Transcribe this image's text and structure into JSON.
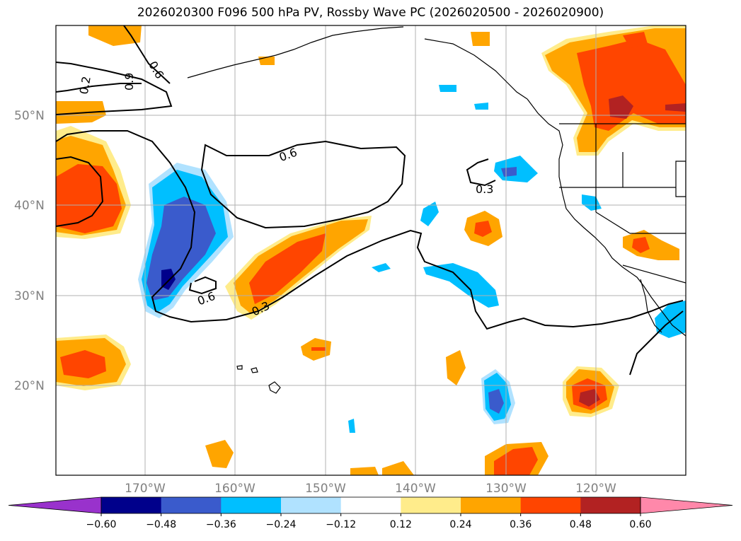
{
  "title": "2026020300 F096 500 hPa PV, Rossby Wave PC (2026020500 - 2026020900)",
  "lat_labels": [
    "50°N",
    "40°N",
    "30°N",
    "20°N"
  ],
  "lon_labels": [
    "170°W",
    "160°W",
    "150°W",
    "140°W",
    "130°W",
    "120°W"
  ],
  "contour_labels": [
    "0.6",
    "0.6",
    "0.3",
    "0.6",
    "0.3",
    "0.2",
    "0.9"
  ],
  "colorbar": {
    "ticks": [
      "−0.60",
      "−0.48",
      "−0.36",
      "−0.24",
      "−0.12",
      "0.12",
      "0.24",
      "0.36",
      "0.48",
      "0.60"
    ],
    "colors": [
      "#9932cc",
      "#00008b",
      "#3a5bcc",
      "#00bfff",
      "#b0e2ff",
      "#ffffff",
      "#ffec8b",
      "#ffa500",
      "#ff4500",
      "#b22222",
      "#ff88aa"
    ]
  },
  "palette": {
    "yellow": "#ffec8b",
    "orange": "#ffa500",
    "red": "#ff4500",
    "darkred": "#b22222",
    "lightblue": "#b0e2ff",
    "cyan": "#00bfff",
    "blue": "#3a5bcc",
    "navy": "#00008b"
  }
}
